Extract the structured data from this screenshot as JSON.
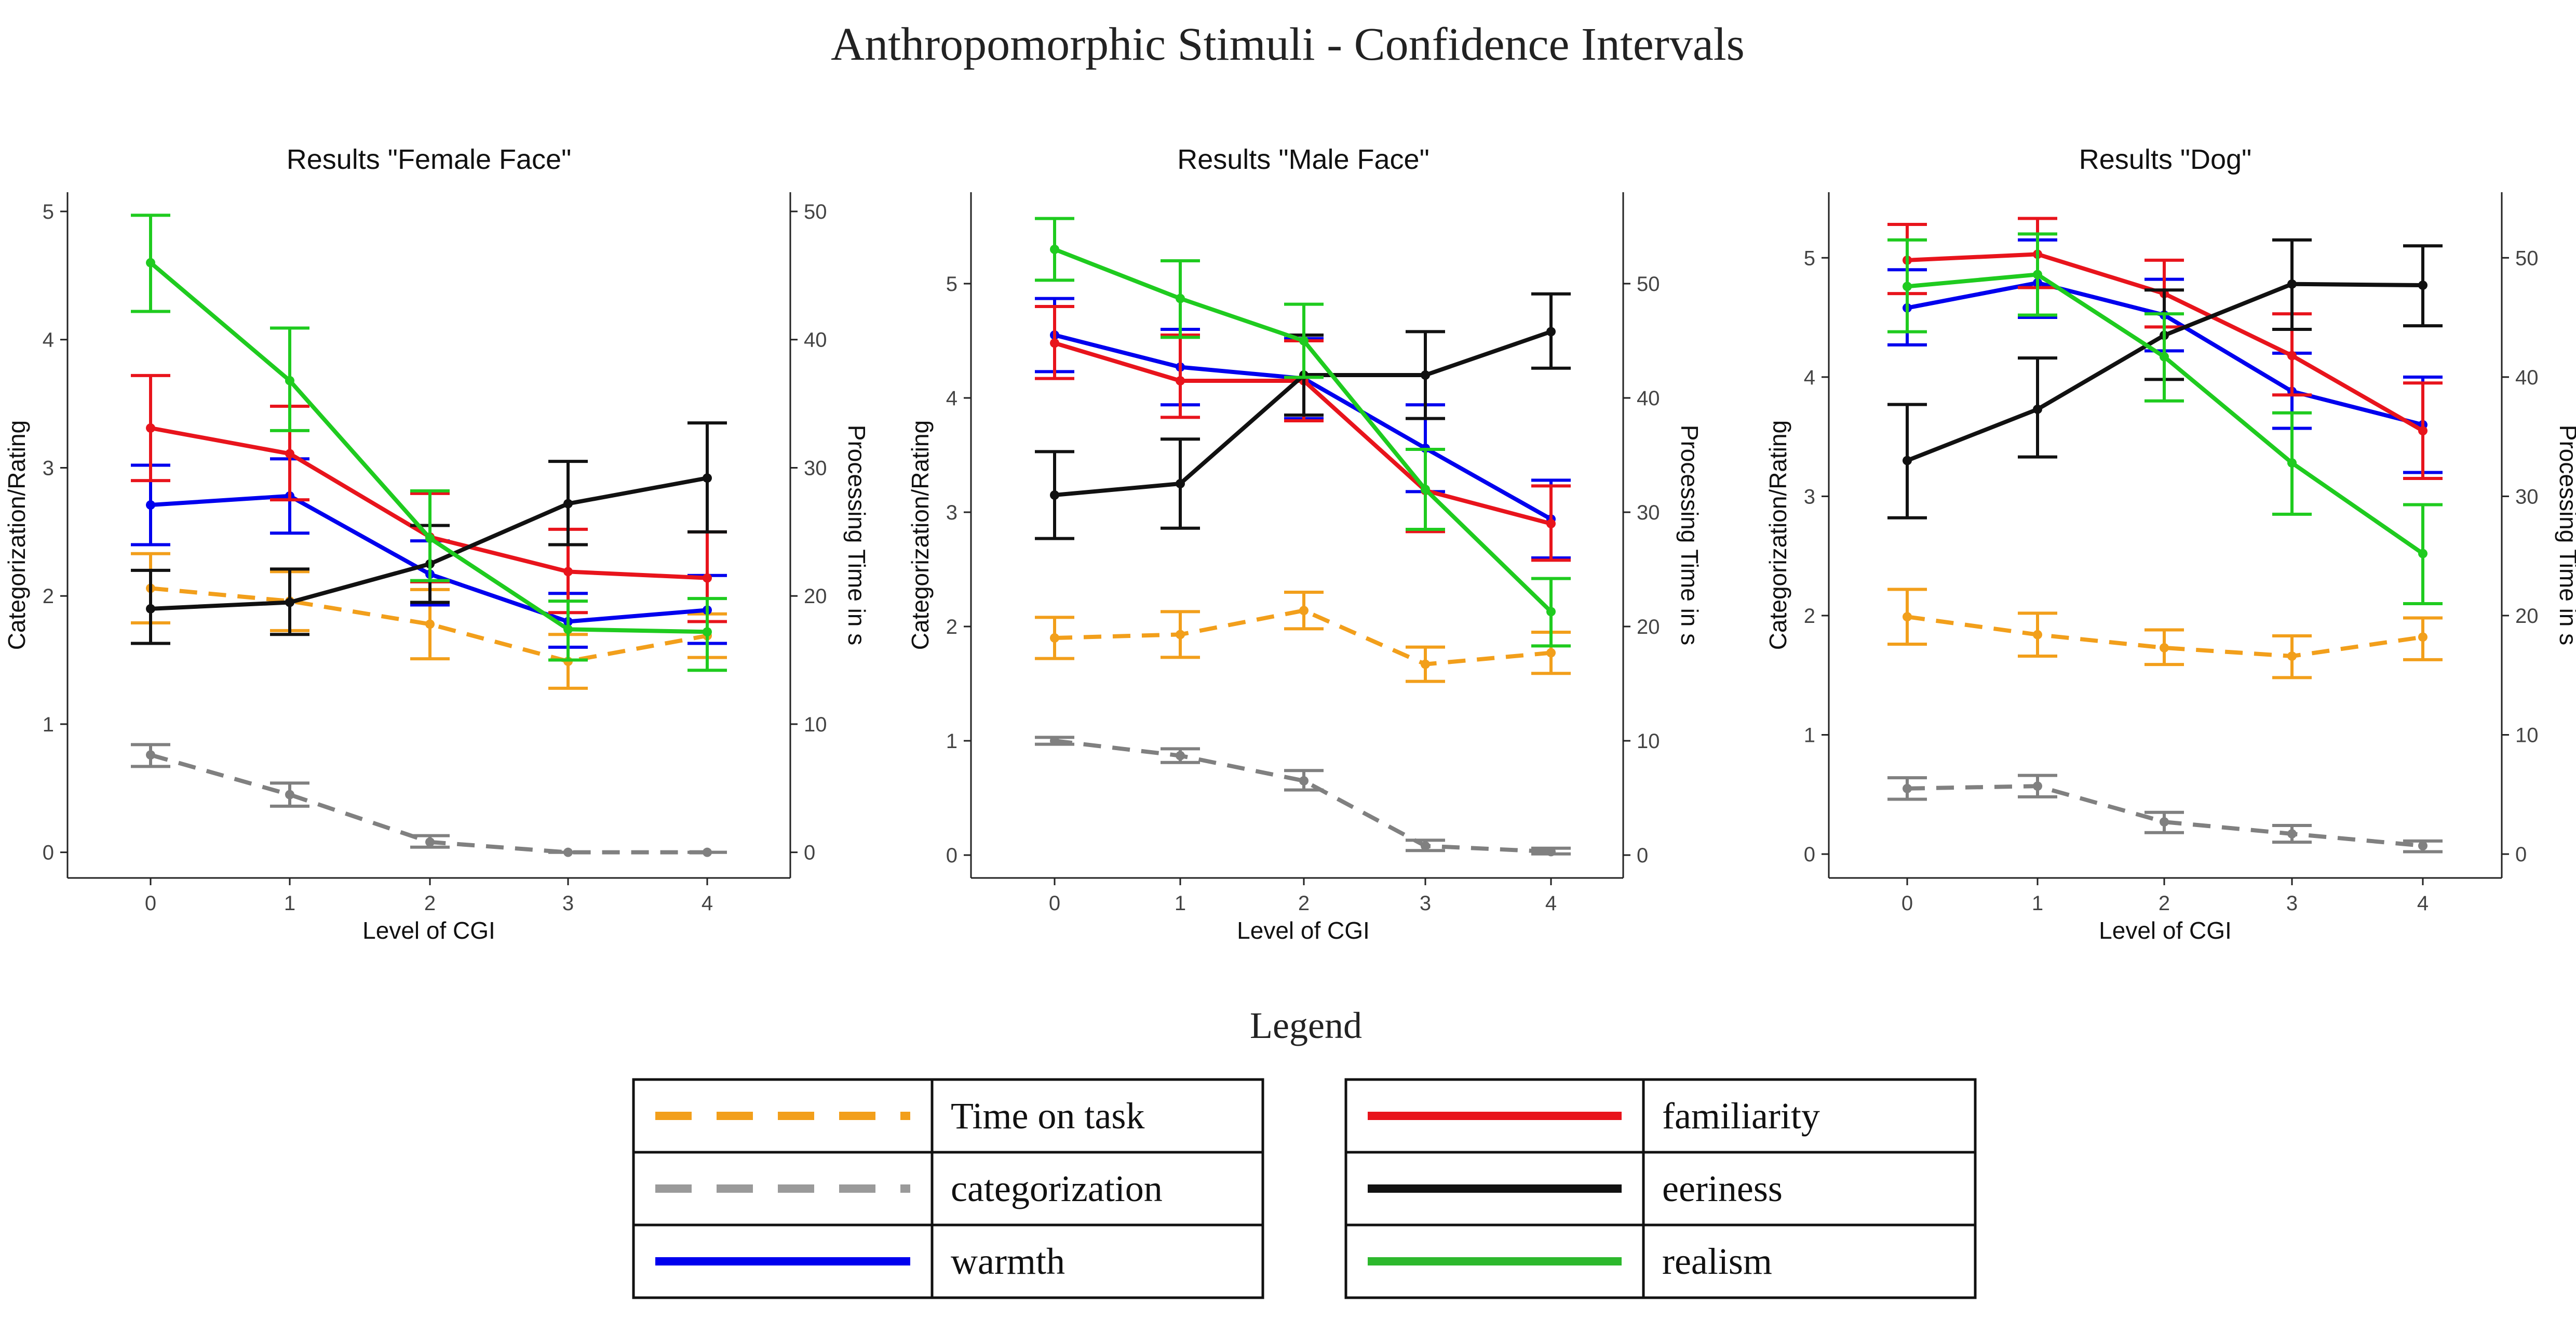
{
  "title": "Anthropomorphic Stimuli - Confidence Intervals",
  "chart_data": [
    {
      "type": "line",
      "title": "Results \"Female Face\"",
      "xlabel": "Level of CGI",
      "ylabel": "Categorization/Rating",
      "y2label": "Processing Time in s",
      "x": [
        0,
        1,
        2,
        3,
        4
      ],
      "xticks": [
        "0",
        "1",
        "2",
        "3",
        "4"
      ],
      "ylim": [
        -0.2,
        5.15
      ],
      "yticks": [
        "0",
        "1",
        "2",
        "3",
        "4",
        "5"
      ],
      "y2ticks": [
        "0",
        "10",
        "20",
        "30",
        "40",
        "50"
      ],
      "y2_per_y": 10,
      "series": [
        {
          "name": "Time on task",
          "key": "time",
          "axis": "right",
          "values": [
            20.6,
            19.6,
            17.8,
            14.9,
            16.9
          ],
          "lower": [
            17.9,
            17.3,
            15.1,
            12.8,
            15.2
          ],
          "upper": [
            23.3,
            21.9,
            20.5,
            17.0,
            18.6
          ]
        },
        {
          "name": "categorization",
          "key": "cat",
          "axis": "left",
          "values": [
            0.76,
            0.45,
            0.08,
            0.0,
            0.0
          ],
          "lower": [
            0.67,
            0.36,
            0.04,
            0.0,
            0.0
          ],
          "upper": [
            0.84,
            0.54,
            0.13,
            0.0,
            0.0
          ]
        },
        {
          "name": "warmth",
          "key": "warmth",
          "axis": "left",
          "values": [
            2.71,
            2.78,
            2.17,
            1.8,
            1.89
          ],
          "lower": [
            2.4,
            2.49,
            1.93,
            1.6,
            1.63
          ],
          "upper": [
            3.02,
            3.07,
            2.43,
            2.02,
            2.16
          ]
        },
        {
          "name": "familiarity",
          "key": "fam",
          "axis": "left",
          "values": [
            3.31,
            3.11,
            2.46,
            2.19,
            2.14
          ],
          "lower": [
            2.9,
            2.75,
            2.11,
            1.87,
            1.8
          ],
          "upper": [
            3.72,
            3.48,
            2.8,
            2.52,
            2.5
          ]
        },
        {
          "name": "eeriness",
          "key": "eer",
          "axis": "left",
          "values": [
            1.9,
            1.95,
            2.25,
            2.72,
            2.92
          ],
          "lower": [
            1.63,
            1.7,
            1.95,
            2.4,
            2.5
          ],
          "upper": [
            2.2,
            2.21,
            2.55,
            3.05,
            3.35
          ]
        },
        {
          "name": "realism",
          "key": "real",
          "axis": "left",
          "values": [
            4.6,
            3.68,
            2.45,
            1.74,
            1.72
          ],
          "lower": [
            4.22,
            3.29,
            2.12,
            1.5,
            1.42
          ],
          "upper": [
            4.97,
            4.09,
            2.82,
            1.96,
            1.98
          ]
        }
      ]
    },
    {
      "type": "line",
      "title": "Results \"Male Face\"",
      "xlabel": "Level of CGI",
      "ylabel": "Categorization/Rating",
      "y2label": "Processing Time in s",
      "x": [
        0,
        1,
        2,
        3,
        4
      ],
      "xticks": [
        "0",
        "1",
        "2",
        "3",
        "4"
      ],
      "ylim": [
        -0.2,
        5.8
      ],
      "yticks": [
        "0",
        "1",
        "2",
        "3",
        "4",
        "5"
      ],
      "y2ticks": [
        "0",
        "10",
        "20",
        "30",
        "40",
        "50"
      ],
      "y2_per_y": 10,
      "series": [
        {
          "name": "Time on task",
          "key": "time",
          "axis": "right",
          "values": [
            19.0,
            19.3,
            21.4,
            16.7,
            17.7
          ],
          "lower": [
            17.2,
            17.3,
            19.8,
            15.2,
            15.9
          ],
          "upper": [
            20.8,
            21.3,
            23.0,
            18.2,
            19.5
          ]
        },
        {
          "name": "categorization",
          "key": "cat",
          "axis": "left",
          "values": [
            1.0,
            0.87,
            0.65,
            0.08,
            0.03
          ],
          "lower": [
            0.97,
            0.81,
            0.57,
            0.04,
            0.01
          ],
          "upper": [
            1.03,
            0.93,
            0.74,
            0.13,
            0.06
          ]
        },
        {
          "name": "warmth",
          "key": "warmth",
          "axis": "left",
          "values": [
            4.55,
            4.27,
            4.17,
            3.56,
            2.94
          ],
          "lower": [
            4.23,
            3.94,
            3.82,
            3.18,
            2.6
          ],
          "upper": [
            4.87,
            4.6,
            4.52,
            3.94,
            3.28
          ]
        },
        {
          "name": "familiarity",
          "key": "fam",
          "axis": "left",
          "values": [
            4.48,
            4.15,
            4.15,
            3.19,
            2.9
          ],
          "lower": [
            4.17,
            3.83,
            3.8,
            2.83,
            2.58
          ],
          "upper": [
            4.8,
            4.55,
            4.5,
            3.55,
            3.23
          ]
        },
        {
          "name": "eeriness",
          "key": "eer",
          "axis": "left",
          "values": [
            3.15,
            3.25,
            4.2,
            4.2,
            4.58
          ],
          "lower": [
            2.77,
            2.86,
            3.85,
            3.82,
            4.26
          ],
          "upper": [
            3.53,
            3.64,
            4.55,
            4.58,
            4.91
          ]
        },
        {
          "name": "realism",
          "key": "real",
          "axis": "left",
          "values": [
            5.3,
            4.87,
            4.5,
            3.2,
            2.13
          ],
          "lower": [
            5.03,
            4.53,
            4.18,
            2.85,
            1.83
          ],
          "upper": [
            5.57,
            5.2,
            4.82,
            3.55,
            2.42
          ]
        }
      ]
    },
    {
      "type": "line",
      "title": "Results \"Dog\"",
      "xlabel": "Level of CGI",
      "ylabel": "Categorization/Rating",
      "y2label": "Processing Time in s",
      "x": [
        0,
        1,
        2,
        3,
        4
      ],
      "xticks": [
        "0",
        "1",
        "2",
        "3",
        "4"
      ],
      "ylim": [
        -0.2,
        5.55
      ],
      "yticks": [
        "0",
        "1",
        "2",
        "3",
        "4",
        "5"
      ],
      "y2ticks": [
        "0",
        "10",
        "20",
        "30",
        "40",
        "50"
      ],
      "y2_per_y": 10,
      "series": [
        {
          "name": "Time on task",
          "key": "time",
          "axis": "right",
          "values": [
            19.9,
            18.4,
            17.3,
            16.6,
            18.2
          ],
          "lower": [
            17.6,
            16.6,
            15.9,
            14.8,
            16.3
          ],
          "upper": [
            22.2,
            20.2,
            18.8,
            18.3,
            19.8
          ]
        },
        {
          "name": "categorization",
          "key": "cat",
          "axis": "left",
          "values": [
            0.55,
            0.57,
            0.27,
            0.17,
            0.07
          ],
          "lower": [
            0.46,
            0.48,
            0.18,
            0.1,
            0.02
          ],
          "upper": [
            0.64,
            0.66,
            0.35,
            0.24,
            0.11
          ]
        },
        {
          "name": "warmth",
          "key": "warmth",
          "axis": "left",
          "values": [
            4.58,
            4.79,
            4.52,
            3.88,
            3.6
          ],
          "lower": [
            4.27,
            4.5,
            4.22,
            3.57,
            3.2
          ],
          "upper": [
            4.9,
            5.15,
            4.82,
            4.2,
            4.0
          ]
        },
        {
          "name": "familiarity",
          "key": "fam",
          "axis": "left",
          "values": [
            4.98,
            5.03,
            4.7,
            4.18,
            3.55
          ],
          "lower": [
            4.7,
            4.75,
            4.42,
            3.85,
            3.15
          ],
          "upper": [
            5.28,
            5.33,
            4.98,
            4.53,
            3.95
          ]
        },
        {
          "name": "eeriness",
          "key": "eer",
          "axis": "left",
          "values": [
            3.3,
            3.73,
            4.35,
            4.78,
            4.77
          ],
          "lower": [
            2.82,
            3.33,
            3.98,
            4.4,
            4.43
          ],
          "upper": [
            3.77,
            4.16,
            4.73,
            5.15,
            5.1
          ]
        },
        {
          "name": "realism",
          "key": "real",
          "axis": "left",
          "values": [
            4.76,
            4.86,
            4.17,
            3.28,
            2.52
          ],
          "lower": [
            4.38,
            4.52,
            3.8,
            2.85,
            2.1
          ],
          "upper": [
            5.15,
            5.2,
            4.53,
            3.7,
            2.93
          ]
        }
      ]
    }
  ],
  "legend": {
    "title": "Legend",
    "entries": [
      {
        "key": "time",
        "label": "Time on task",
        "color": "#F29F1B",
        "dashed": true
      },
      {
        "key": "cat",
        "label": "categorization",
        "color": "#9A9A9A",
        "dashed": true
      },
      {
        "key": "warmth",
        "label": "warmth",
        "color": "#0000EE",
        "dashed": false
      },
      {
        "key": "fam",
        "label": "familiarity",
        "color": "#E8141C",
        "dashed": false
      },
      {
        "key": "eer",
        "label": "eeriness",
        "color": "#111111",
        "dashed": false
      },
      {
        "key": "real",
        "label": "realism",
        "color": "#2DB82D",
        "dashed": false
      }
    ]
  },
  "colors": {
    "time": "#F29F1B",
    "cat": "#808080",
    "warmth": "#0000EE",
    "fam": "#E8141C",
    "eer": "#111111",
    "real": "#1FCB1F"
  }
}
